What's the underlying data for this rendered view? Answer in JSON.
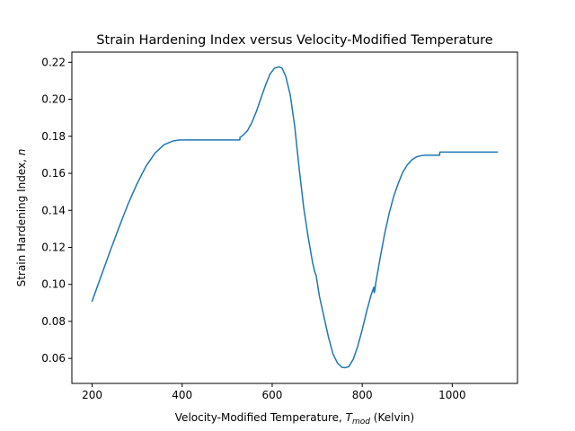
{
  "chart_data": {
    "type": "line",
    "title": "Strain Hardening Index versus Velocity-Modified Temperature",
    "xlabel": {
      "main": "Velocity-Modified Temperature, ",
      "symbol": "T",
      "subscript": "mod",
      "suffix": " (Kelvin)"
    },
    "ylabel": {
      "main": "Strain Hardening Index, ",
      "symbol": "n"
    },
    "xlim": [
      155,
      1145
    ],
    "ylim": [
      0.0465,
      0.2255
    ],
    "xticks": [
      200,
      400,
      600,
      800,
      1000
    ],
    "yticks": [
      0.06,
      0.08,
      0.1,
      0.12,
      0.14,
      0.16,
      0.18,
      0.2,
      0.22
    ],
    "ytick_labels": [
      "0.06",
      "0.08",
      "0.10",
      "0.12",
      "0.14",
      "0.16",
      "0.18",
      "0.20",
      "0.22"
    ],
    "grid": false,
    "series": [
      {
        "color": "#1f77b4",
        "x": [
          200,
          220,
          240,
          260,
          280,
          300,
          320,
          340,
          360,
          380,
          395,
          410,
          430,
          460,
          500,
          528,
          528.5,
          535,
          545,
          555,
          565,
          575,
          585,
          595,
          605,
          615,
          622,
          630,
          640,
          650,
          660,
          670,
          680,
          690,
          695,
          698,
          698.5,
          705,
          715,
          725,
          735,
          745,
          755,
          762,
          770,
          780,
          790,
          800,
          810,
          820,
          826,
          826.5,
          828,
          829,
          830,
          840,
          850,
          860,
          870,
          880,
          890,
          900,
          910,
          920,
          930,
          940,
          950,
          960,
          972,
          972.5,
          1000,
          1050,
          1100
        ],
        "y": [
          0.091,
          0.1045,
          0.118,
          0.131,
          0.1435,
          0.1545,
          0.164,
          0.171,
          0.1755,
          0.1775,
          0.178,
          0.178,
          0.178,
          0.178,
          0.178,
          0.178,
          0.1795,
          0.1805,
          0.183,
          0.1875,
          0.1935,
          0.2005,
          0.2075,
          0.2135,
          0.2168,
          0.2175,
          0.2168,
          0.2125,
          0.2025,
          0.1855,
          0.1625,
          0.1415,
          0.1255,
          0.1115,
          0.1065,
          0.1045,
          0.1035,
          0.0935,
          0.0825,
          0.0715,
          0.0625,
          0.0575,
          0.0552,
          0.055,
          0.0555,
          0.0595,
          0.0665,
          0.0755,
          0.0855,
          0.0945,
          0.0985,
          0.0955,
          0.0965,
          0.0985,
          0.1005,
          0.1145,
          0.1275,
          0.1385,
          0.1475,
          0.1545,
          0.1605,
          0.1645,
          0.1672,
          0.1688,
          0.1695,
          0.1698,
          0.1698,
          0.1698,
          0.1698,
          0.1715,
          0.1715,
          0.1715,
          0.1715
        ]
      }
    ]
  }
}
